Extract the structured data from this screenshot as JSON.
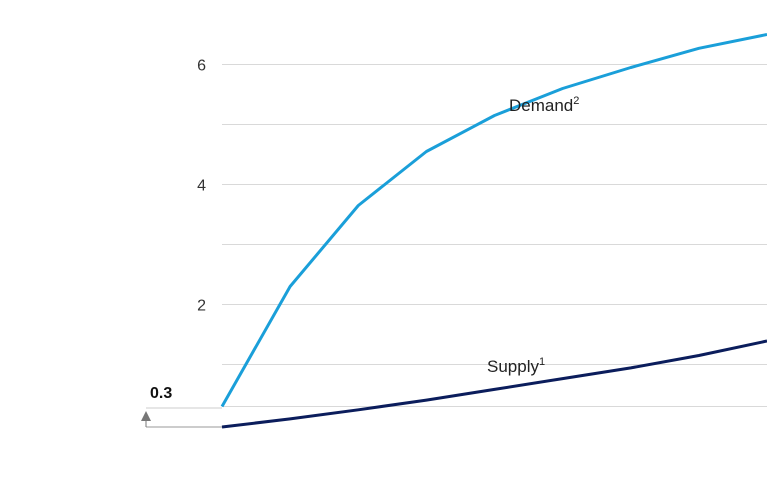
{
  "chart_data": {
    "type": "line",
    "x": [
      0,
      1,
      2,
      3,
      4,
      5,
      6,
      7,
      8
    ],
    "ylim": [
      0,
      6
    ],
    "yticks": [
      2,
      4,
      6
    ],
    "ytick_labels": [
      "2",
      "4",
      "6"
    ],
    "grid": true,
    "series": [
      {
        "name": "Demand",
        "superscript": "2",
        "color": "#1a9fd9",
        "values": [
          0.3,
          2.3,
          3.65,
          4.55,
          5.15,
          5.6,
          5.95,
          6.27,
          6.5
        ]
      },
      {
        "name": "Supply",
        "superscript": "1",
        "color": "#0b1d5c",
        "values": [
          0.0,
          0.15,
          0.32,
          0.5,
          0.7,
          0.9,
          1.1,
          1.33,
          1.6
        ]
      }
    ],
    "annotation": {
      "label": "0.3",
      "color": "#777777"
    }
  }
}
